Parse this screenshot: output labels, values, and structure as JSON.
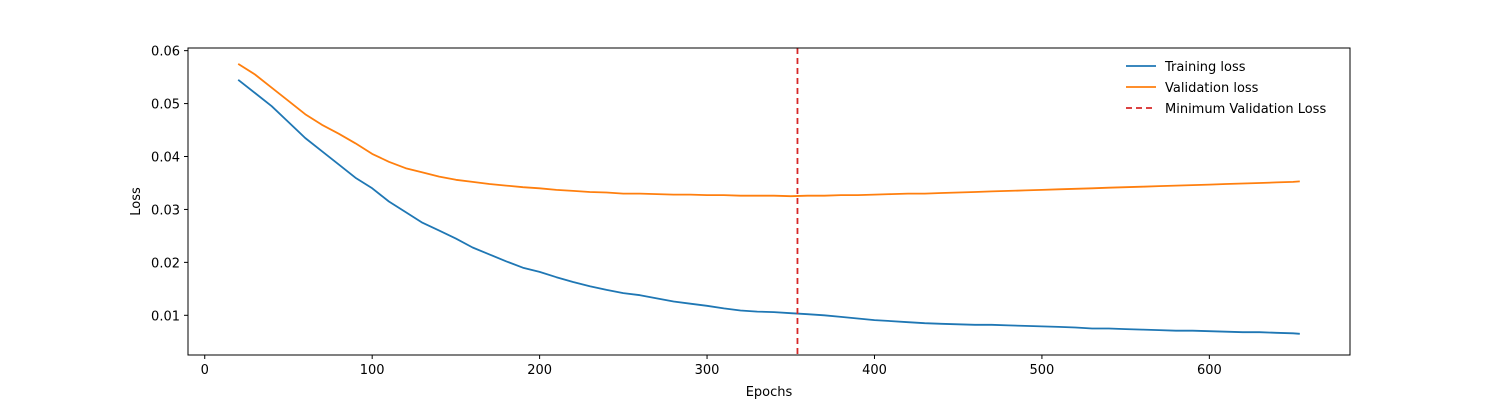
{
  "chart_data": {
    "type": "line",
    "title": "",
    "xlabel": "Epochs",
    "ylabel": "Loss",
    "xlim": [
      -10,
      684
    ],
    "ylim": [
      0.0025,
      0.0605
    ],
    "xticks": [
      0,
      100,
      200,
      300,
      400,
      500,
      600
    ],
    "yticks": [
      0.01,
      0.02,
      0.03,
      0.04,
      0.05,
      0.06
    ],
    "grid": false,
    "legend_position": "top-right",
    "colors": {
      "training": "#1f77b4",
      "validation": "#ff7f0e",
      "min_line": "#d62728"
    },
    "series": [
      {
        "name": "Training loss",
        "color": "#1f77b4",
        "x": [
          20,
          30,
          40,
          50,
          60,
          70,
          80,
          90,
          100,
          110,
          120,
          130,
          140,
          150,
          160,
          170,
          180,
          190,
          200,
          210,
          220,
          230,
          240,
          250,
          260,
          270,
          280,
          290,
          300,
          310,
          320,
          330,
          340,
          350,
          360,
          370,
          380,
          390,
          400,
          410,
          420,
          430,
          440,
          450,
          460,
          470,
          480,
          490,
          500,
          510,
          520,
          530,
          540,
          550,
          560,
          570,
          580,
          590,
          600,
          610,
          620,
          630,
          640,
          650,
          654
        ],
        "y": [
          0.0545,
          0.052,
          0.0495,
          0.0465,
          0.0435,
          0.041,
          0.0385,
          0.036,
          0.034,
          0.0315,
          0.0295,
          0.0275,
          0.026,
          0.0245,
          0.0228,
          0.0215,
          0.0202,
          0.019,
          0.0182,
          0.0172,
          0.0163,
          0.0155,
          0.0148,
          0.0142,
          0.0138,
          0.0132,
          0.0126,
          0.0122,
          0.0118,
          0.0113,
          0.0109,
          0.0107,
          0.0106,
          0.0104,
          0.0102,
          0.01,
          0.0097,
          0.0094,
          0.0091,
          0.0089,
          0.0087,
          0.0085,
          0.0084,
          0.0083,
          0.0082,
          0.0082,
          0.0081,
          0.008,
          0.0079,
          0.0078,
          0.0077,
          0.0075,
          0.0075,
          0.0074,
          0.0073,
          0.0072,
          0.0071,
          0.0071,
          0.007,
          0.0069,
          0.0068,
          0.0068,
          0.0067,
          0.0066,
          0.0065
        ]
      },
      {
        "name": "Validation loss",
        "color": "#ff7f0e",
        "x": [
          20,
          30,
          40,
          50,
          60,
          70,
          80,
          90,
          100,
          110,
          120,
          130,
          140,
          150,
          160,
          170,
          180,
          190,
          200,
          210,
          220,
          230,
          240,
          250,
          260,
          270,
          280,
          290,
          300,
          310,
          320,
          330,
          340,
          350,
          360,
          370,
          380,
          390,
          400,
          410,
          420,
          430,
          440,
          450,
          460,
          470,
          480,
          490,
          500,
          510,
          520,
          530,
          540,
          550,
          560,
          570,
          580,
          590,
          600,
          610,
          620,
          630,
          640,
          650,
          654
        ],
        "y": [
          0.0575,
          0.0555,
          0.053,
          0.0505,
          0.048,
          0.046,
          0.0443,
          0.0425,
          0.0405,
          0.039,
          0.0378,
          0.037,
          0.0362,
          0.0356,
          0.0352,
          0.0348,
          0.0345,
          0.0342,
          0.034,
          0.0337,
          0.0335,
          0.0333,
          0.0332,
          0.033,
          0.033,
          0.0329,
          0.0328,
          0.0328,
          0.0327,
          0.0327,
          0.0326,
          0.0326,
          0.0326,
          0.0325,
          0.0326,
          0.0326,
          0.0327,
          0.0327,
          0.0328,
          0.0329,
          0.033,
          0.033,
          0.0331,
          0.0332,
          0.0333,
          0.0334,
          0.0335,
          0.0336,
          0.0337,
          0.0338,
          0.0339,
          0.034,
          0.0341,
          0.0342,
          0.0343,
          0.0344,
          0.0345,
          0.0346,
          0.0347,
          0.0348,
          0.0349,
          0.035,
          0.0351,
          0.0352,
          0.0353
        ]
      }
    ],
    "vertical_line": {
      "name": "Minimum Validation Loss",
      "x": 354,
      "color": "#d62728",
      "style": "dashed"
    }
  }
}
